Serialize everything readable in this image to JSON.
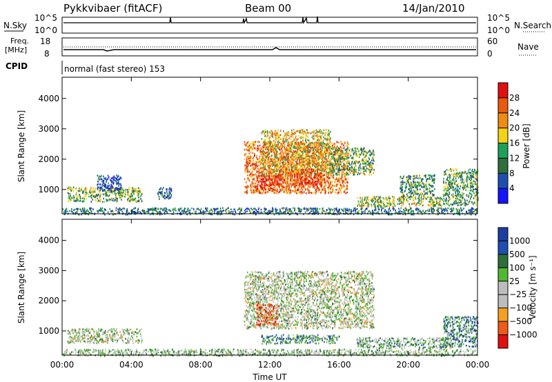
{
  "header": {
    "title": "Pykkvibaer (fitACF)",
    "beam": "Beam 00",
    "date": "14/Jan/2010"
  },
  "top_panels": {
    "nsky_label": "N.Sky",
    "nsearch_label": "N.Search",
    "nsky_ticks": [
      "10^5",
      "10^0"
    ],
    "nsearch_ticks": [
      "10^5",
      "10^0"
    ],
    "freq_label_1": "Freq.",
    "freq_label_2": "[MHz]",
    "freq_ticks": [
      "18",
      "8"
    ],
    "nave_label": "Nave",
    "nave_ticks": [
      "60",
      "0"
    ],
    "cpid_label": "CPID",
    "cpid_text": "normal (fast stereo) 153"
  },
  "colors": {
    "power_scale": [
      "#1414ff",
      "#1e4fb0",
      "#2e6e3a",
      "#1fa05a",
      "#f5d216",
      "#f08c14",
      "#e85a10",
      "#e01010"
    ],
    "velocity_scale": [
      "#e01010",
      "#f05a1a",
      "#f5a020",
      "#bdbdbd",
      "#bdbdbd",
      "#52b832",
      "#2e6e3a",
      "#1e4fb0",
      "#1a3fa0"
    ],
    "ground_scatter": "#bdbdbd"
  },
  "chart_data": [
    {
      "type": "heatmap",
      "name": "power",
      "xlabel": "",
      "ylabel": "Slant Range [km]",
      "x_ticks": [
        "00:00",
        "04:00",
        "08:00",
        "12:00",
        "16:00",
        "20:00",
        "00:00"
      ],
      "y_ticks": [
        "1000",
        "2000",
        "3000",
        "4000"
      ],
      "xlim": [
        0,
        24
      ],
      "ylim": [
        200,
        4700
      ],
      "colorbar": {
        "label": "Power [dB]",
        "ticks": [
          "4",
          "8",
          "12",
          "16",
          "20",
          "24",
          "28"
        ],
        "range": [
          0,
          32
        ]
      },
      "regions": [
        {
          "t0": 0.3,
          "t1": 4.6,
          "r0": 620,
          "r1": 1100,
          "level": 0.45
        },
        {
          "t0": 2.0,
          "t1": 3.4,
          "r0": 980,
          "r1": 1500,
          "level": 0.2
        },
        {
          "t0": 5.5,
          "t1": 6.3,
          "r0": 700,
          "r1": 1100,
          "level": 0.2
        },
        {
          "t0": 10.5,
          "t1": 16.5,
          "r0": 900,
          "r1": 2600,
          "level": 0.75
        },
        {
          "t0": 11.5,
          "t1": 15.5,
          "r0": 1500,
          "r1": 3000,
          "level": 0.6
        },
        {
          "t0": 15.5,
          "t1": 18.0,
          "r0": 1500,
          "r1": 2400,
          "level": 0.45
        },
        {
          "t0": 12.5,
          "t1": 15.0,
          "r0": 1100,
          "r1": 1700,
          "level": 0.85
        },
        {
          "t0": 11.2,
          "t1": 12.6,
          "r0": 1000,
          "r1": 1500,
          "level": 0.95
        },
        {
          "t0": 17.0,
          "t1": 22.0,
          "r0": 450,
          "r1": 800,
          "level": 0.5
        },
        {
          "t0": 19.5,
          "t1": 21.5,
          "r0": 800,
          "r1": 1500,
          "level": 0.35
        },
        {
          "t0": 22.0,
          "t1": 24.0,
          "r0": 500,
          "r1": 1700,
          "level": 0.4
        },
        {
          "t0": 0.0,
          "t1": 24.0,
          "r0": 200,
          "r1": 420,
          "level": 0.3
        }
      ]
    },
    {
      "type": "heatmap",
      "name": "velocity",
      "xlabel": "Time UT",
      "ylabel": "Slant Range [km]",
      "x_ticks": [
        "00:00",
        "04:00",
        "08:00",
        "12:00",
        "16:00",
        "20:00",
        "00:00"
      ],
      "y_ticks": [
        "1000",
        "2000",
        "3000",
        "4000"
      ],
      "xlim": [
        0,
        24
      ],
      "ylim": [
        200,
        4700
      ],
      "colorbar": {
        "label": "Velocity [m s⁻¹]",
        "ticks": [
          "1000",
          "500",
          "100",
          "25",
          "−25",
          "−100",
          "−500",
          "−1000"
        ]
      },
      "regions": [
        {
          "t0": 0.3,
          "t1": 4.6,
          "r0": 620,
          "r1": 1100,
          "level": 0.5
        },
        {
          "t0": 10.5,
          "t1": 18.0,
          "r0": 1100,
          "r1": 3000,
          "level": 0.5
        },
        {
          "t0": 11.2,
          "t1": 12.5,
          "r0": 1200,
          "r1": 1900,
          "level": 0.2
        },
        {
          "t0": 11.5,
          "t1": 16.0,
          "r0": 600,
          "r1": 900,
          "level": 0.65
        },
        {
          "t0": 17.0,
          "t1": 22.5,
          "r0": 450,
          "r1": 800,
          "level": 0.6
        },
        {
          "t0": 22.0,
          "t1": 24.0,
          "r0": 500,
          "r1": 1500,
          "level": 0.7
        },
        {
          "t0": 0.0,
          "t1": 24.0,
          "r0": 200,
          "r1": 420,
          "level": 0.55
        }
      ]
    }
  ]
}
